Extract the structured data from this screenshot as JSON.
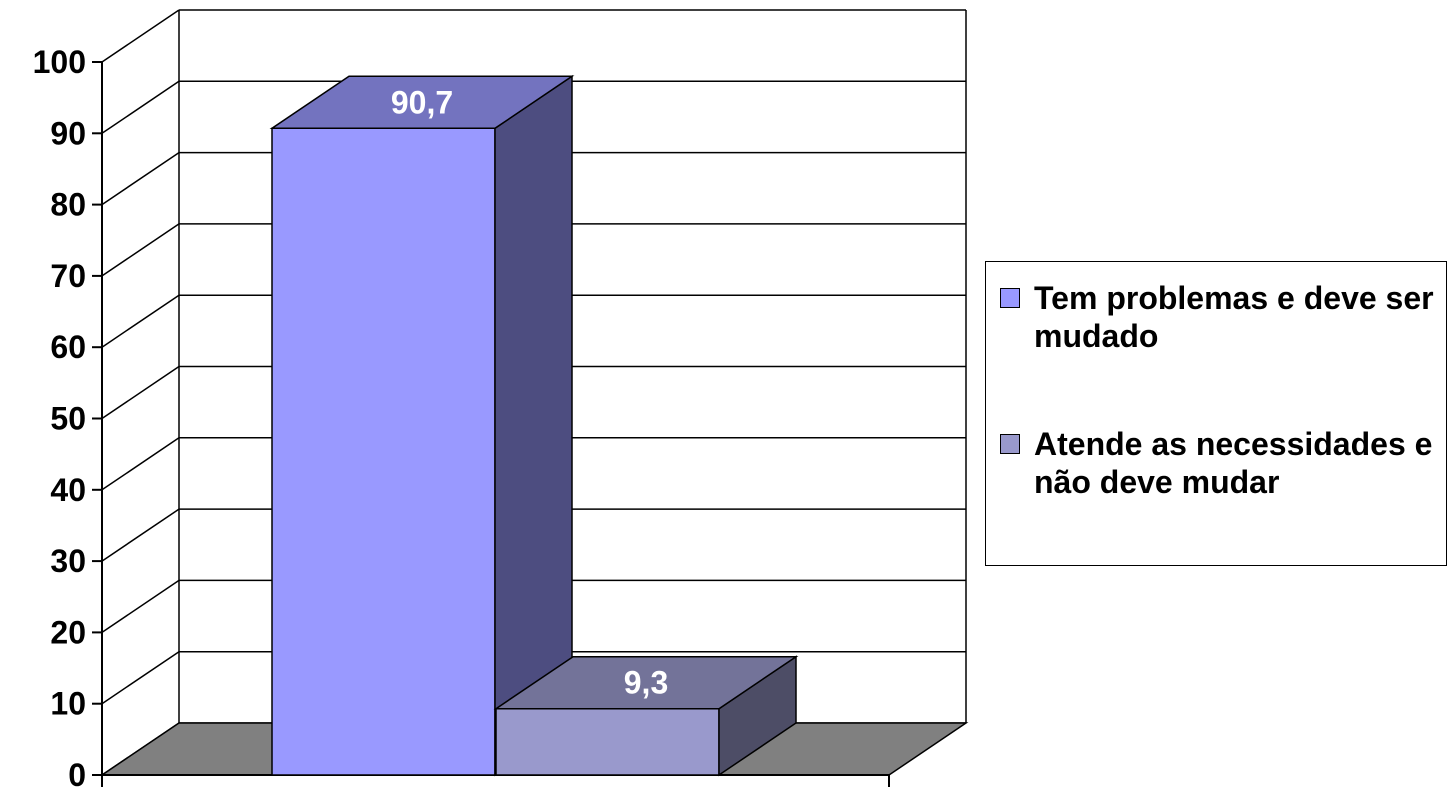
{
  "chart_data": {
    "type": "bar",
    "categories": [
      "Tem problemas e deve ser mudado",
      "Atende as necessidades e não deve mudar"
    ],
    "values": [
      90.7,
      9.3
    ],
    "data_labels": [
      "90,7",
      "9,3"
    ],
    "title": "",
    "xlabel": "",
    "ylabel": "",
    "ylim": [
      0,
      100
    ],
    "yticks": [
      "0",
      "10",
      "20",
      "30",
      "40",
      "50",
      "60",
      "70",
      "80",
      "90",
      "100"
    ],
    "grid": true,
    "three_d": true,
    "legend_position": "right",
    "colors": {
      "series": [
        "#9999ff",
        "#9999cc"
      ],
      "bar_side": [
        "#4d4d80",
        "#4d4d66"
      ],
      "bar_top": [
        "#7373bf",
        "#737399"
      ],
      "floor": "#808080",
      "data_label": "#ffffff"
    }
  },
  "legend": {
    "items": [
      {
        "label": "Tem problemas e deve ser mudado",
        "color": "#9999ff"
      },
      {
        "label": "Atende as necessidades e não deve mudar",
        "color": "#9999cc"
      }
    ]
  }
}
